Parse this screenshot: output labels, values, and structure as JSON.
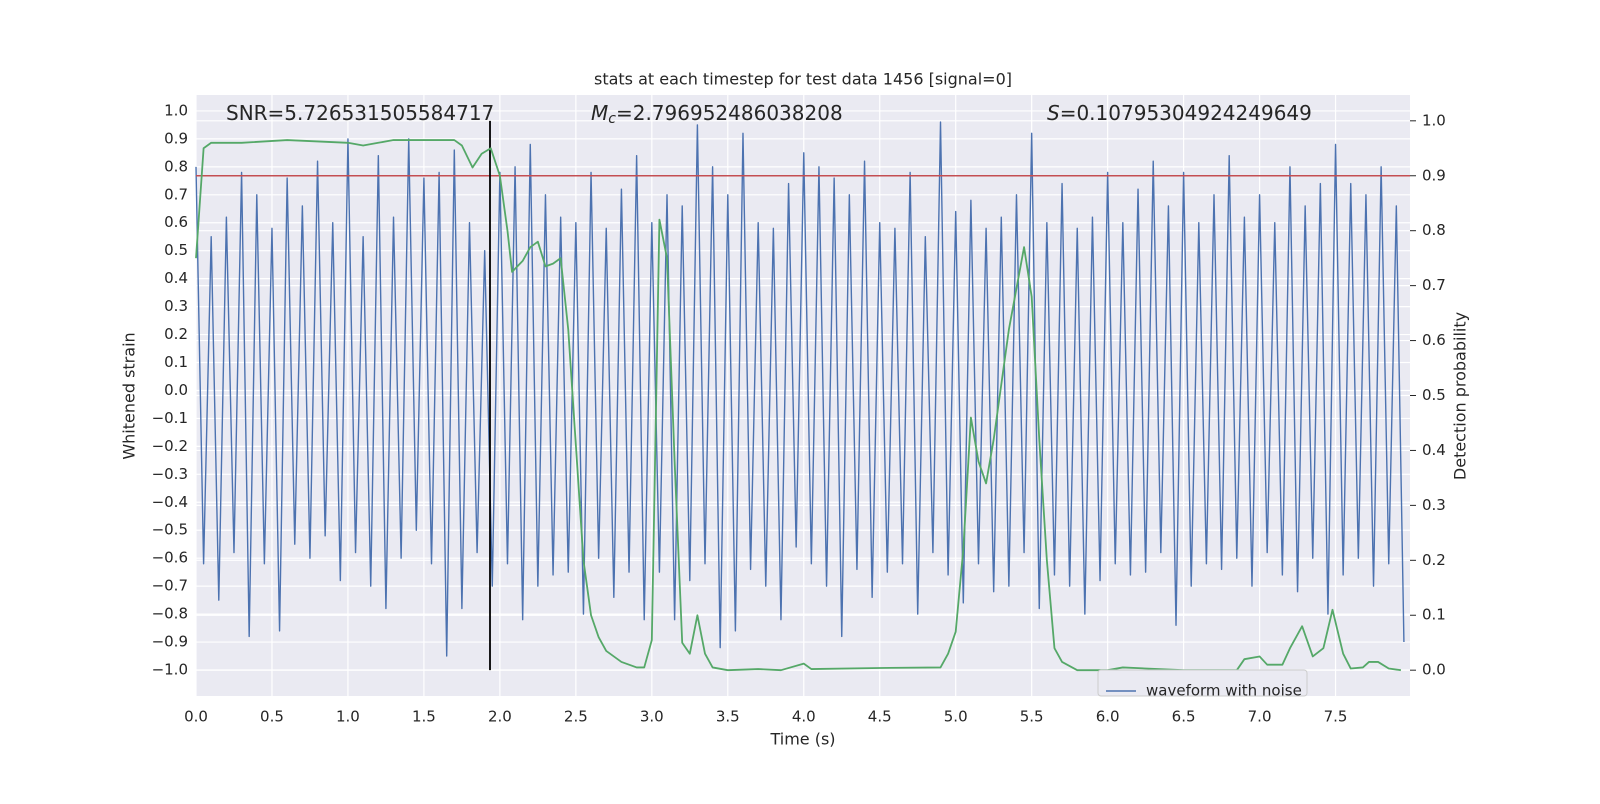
{
  "chart_data": {
    "type": "line",
    "title": "stats at each timestep for test data 1456 [signal=0]",
    "xlabel": "Time (s)",
    "ylabel": "Whitened strain",
    "y2label": "Detection probability",
    "xlim": [
      0,
      7.99
    ],
    "ylim": [
      -1.093,
      1.057
    ],
    "y2lim": [
      -0.047,
      1.047
    ],
    "grid": true,
    "legend": "lower right",
    "xticks": [
      {
        "value": 0,
        "label": "0.0"
      },
      0.5,
      {
        "value": 1,
        "label": "1.0"
      },
      1.5,
      {
        "value": 2,
        "label": "2.0"
      },
      2.5,
      {
        "value": 3,
        "label": "3.0"
      },
      3.5,
      {
        "value": 4,
        "label": "4.0"
      },
      4.5,
      {
        "value": 5,
        "label": "5.0"
      },
      5.5,
      {
        "value": 6,
        "label": "6.0"
      },
      6.5,
      {
        "value": 7,
        "label": "7.0"
      },
      7.5
    ],
    "yticks": [
      {
        "value": 1,
        "label": "1.0"
      },
      0.9,
      0.8,
      0.7,
      0.6,
      0.5,
      0.4,
      0.3,
      0.2,
      0.1,
      {
        "value": 0,
        "label": "0.0"
      },
      {
        "value": -0.1,
        "label": "−0.1"
      },
      {
        "value": -0.2,
        "label": "−0.2"
      },
      {
        "value": -0.3,
        "label": "−0.3"
      },
      {
        "value": -0.4,
        "label": "−0.4"
      },
      {
        "value": -0.5,
        "label": "−0.5"
      },
      {
        "value": -0.6,
        "label": "−0.6"
      },
      {
        "value": -0.7,
        "label": "−0.7"
      },
      {
        "value": -0.8,
        "label": "−0.8"
      },
      {
        "value": -0.9,
        "label": "−0.9"
      },
      {
        "value": -1,
        "label": "−1.0"
      }
    ],
    "y2ticks": [
      {
        "value": 1,
        "label": "1.0"
      },
      0.9,
      0.8,
      0.7,
      0.6,
      0.5,
      0.4,
      0.3,
      0.2,
      0.1,
      {
        "value": 0,
        "label": "0.0"
      }
    ],
    "annotations": [
      {
        "text": "SNR=5.726531505584717"
      },
      {
        "symbol": "M",
        "subscript": "c",
        "text": "=2.796952486038208"
      },
      {
        "symbol": "S",
        "text": "=0.10795304924249649"
      }
    ],
    "hlines": [
      {
        "value": 0.9,
        "axis": "y2",
        "color": "#c44e52"
      }
    ],
    "vlines": [
      {
        "value": 1.935,
        "from": 0,
        "to": 1,
        "axis": "y2",
        "color": "#000000"
      }
    ],
    "series": [
      {
        "name": "waveform with noise",
        "color": "#4c72b0",
        "x": [
          0,
          0.05,
          0.1,
          0.15,
          0.2,
          0.25,
          0.3,
          0.35,
          0.4,
          0.45,
          0.5,
          0.55,
          0.6,
          0.65,
          0.7,
          0.75,
          0.8,
          0.85,
          0.9,
          0.95,
          1,
          1.05,
          1.1,
          1.15,
          1.2,
          1.25,
          1.3,
          1.35,
          1.4,
          1.45,
          1.5,
          1.55,
          1.6,
          1.65,
          1.7,
          1.75,
          1.8,
          1.85,
          1.9,
          1.95,
          2,
          2.05,
          2.1,
          2.15,
          2.2,
          2.25,
          2.3,
          2.35,
          2.4,
          2.45,
          2.5,
          2.55,
          2.6,
          2.65,
          2.7,
          2.75,
          2.8,
          2.85,
          2.9,
          2.95,
          3,
          3.05,
          3.1,
          3.15,
          3.2,
          3.25,
          3.3,
          3.35,
          3.4,
          3.45,
          3.5,
          3.55,
          3.6,
          3.65,
          3.7,
          3.75,
          3.8,
          3.85,
          3.9,
          3.95,
          4,
          4.05,
          4.1,
          4.15,
          4.2,
          4.25,
          4.3,
          4.35,
          4.4,
          4.45,
          4.5,
          4.55,
          4.6,
          4.65,
          4.7,
          4.75,
          4.8,
          4.85,
          4.9,
          4.95,
          5,
          5.05,
          5.1,
          5.15,
          5.2,
          5.25,
          5.3,
          5.35,
          5.4,
          5.45,
          5.5,
          5.55,
          5.6,
          5.65,
          5.7,
          5.75,
          5.8,
          5.85,
          5.9,
          5.95,
          6,
          6.05,
          6.1,
          6.15,
          6.2,
          6.25,
          6.3,
          6.35,
          6.4,
          6.45,
          6.5,
          6.55,
          6.6,
          6.65,
          6.7,
          6.75,
          6.8,
          6.85,
          6.9,
          6.95,
          7,
          7.05,
          7.1,
          7.15,
          7.2,
          7.25,
          7.3,
          7.35,
          7.4,
          7.45,
          7.5,
          7.55,
          7.6,
          7.65,
          7.7,
          7.75,
          7.8,
          7.85,
          7.9,
          7.95
        ],
        "values": [
          0.8,
          -0.62,
          0.55,
          -0.75,
          0.62,
          -0.58,
          0.78,
          -0.88,
          0.7,
          -0.62,
          0.58,
          -0.86,
          0.76,
          -0.55,
          0.66,
          -0.6,
          0.82,
          -0.52,
          0.6,
          -0.68,
          0.9,
          -0.58,
          0.55,
          -0.7,
          0.84,
          -0.78,
          0.62,
          -0.6,
          0.9,
          -0.5,
          0.76,
          -0.62,
          0.78,
          -0.95,
          0.86,
          -0.78,
          0.6,
          -0.58,
          0.5,
          -0.7,
          0.78,
          -0.62,
          0.8,
          -0.82,
          0.88,
          -0.7,
          0.7,
          -0.66,
          0.62,
          -0.65,
          0.6,
          -0.8,
          0.78,
          -0.6,
          0.58,
          -0.74,
          0.72,
          -0.65,
          0.84,
          -0.82,
          0.6,
          -0.65,
          0.7,
          -0.82,
          0.66,
          -0.68,
          0.95,
          -0.62,
          0.8,
          -0.92,
          0.7,
          -0.86,
          0.92,
          -0.64,
          0.6,
          -0.7,
          0.58,
          -0.82,
          0.74,
          -0.56,
          0.85,
          -0.62,
          0.8,
          -0.7,
          0.76,
          -0.88,
          0.7,
          -0.64,
          0.82,
          -0.74,
          0.6,
          -0.65,
          0.58,
          -0.62,
          0.78,
          -0.8,
          0.55,
          -0.58,
          0.96,
          -0.66,
          0.64,
          -0.76,
          0.68,
          -0.62,
          0.58,
          -0.72,
          0.62,
          -0.7,
          0.7,
          -0.58,
          0.92,
          -0.78,
          0.6,
          -0.66,
          0.74,
          -0.7,
          0.58,
          -0.8,
          0.62,
          -0.68,
          0.78,
          -0.62,
          0.6,
          -0.66,
          0.72,
          -0.65,
          0.82,
          -0.58,
          0.66,
          -0.84,
          0.78,
          -0.7,
          0.6,
          -0.62,
          0.7,
          -0.64,
          0.84,
          -0.6,
          0.62,
          -0.7,
          0.7,
          -0.58,
          0.6,
          -0.66,
          0.8,
          -0.72,
          0.66,
          -0.6,
          0.74,
          -0.8,
          0.88,
          -0.66,
          0.74,
          -0.6,
          0.7,
          -0.7,
          0.8,
          -0.62,
          0.66,
          -0.9
        ]
      },
      {
        "color": "#55a868",
        "axis": "y2",
        "x": [
          0,
          0.05,
          0.1,
          0.3,
          0.6,
          1,
          1.1,
          1.2,
          1.3,
          1.7,
          1.75,
          1.82,
          1.88,
          1.94,
          2,
          2.05,
          2.08,
          2.15,
          2.2,
          2.25,
          2.3,
          2.35,
          2.4,
          2.45,
          2.5,
          2.55,
          2.6,
          2.65,
          2.7,
          2.75,
          2.8,
          2.9,
          2.95,
          3,
          3.05,
          3.1,
          3.15,
          3.2,
          3.25,
          3.3,
          3.35,
          3.4,
          3.5,
          3.7,
          3.85,
          4,
          4.05,
          4.5,
          4.9,
          4.95,
          5,
          5.05,
          5.1,
          5.15,
          5.2,
          5.25,
          5.35,
          5.45,
          5.5,
          5.55,
          5.6,
          5.65,
          5.7,
          5.8,
          6,
          6.1,
          6.5,
          6.85,
          6.9,
          7,
          7.05,
          7.15,
          7.2,
          7.28,
          7.35,
          7.42,
          7.48,
          7.55,
          7.6,
          7.68,
          7.72,
          7.78,
          7.85,
          7.93
        ],
        "values": [
          0.75,
          0.95,
          0.96,
          0.96,
          0.965,
          0.96,
          0.955,
          0.96,
          0.965,
          0.965,
          0.955,
          0.915,
          0.94,
          0.95,
          0.9,
          0.8,
          0.725,
          0.745,
          0.77,
          0.78,
          0.735,
          0.74,
          0.75,
          0.62,
          0.41,
          0.2,
          0.1,
          0.06,
          0.035,
          0.025,
          0.015,
          0.005,
          0.005,
          0.055,
          0.82,
          0.75,
          0.38,
          0.05,
          0.03,
          0.1,
          0.03,
          0.005,
          0,
          0.002,
          0,
          0.012,
          0.002,
          0.004,
          0.005,
          0.03,
          0.07,
          0.22,
          0.46,
          0.38,
          0.34,
          0.42,
          0.62,
          0.77,
          0.68,
          0.42,
          0.2,
          0.04,
          0.015,
          0,
          0,
          0.005,
          0,
          0,
          0.02,
          0.025,
          0.01,
          0.01,
          0.04,
          0.08,
          0.025,
          0.04,
          0.11,
          0.03,
          0.003,
          0.005,
          0.015,
          0.015,
          0.003,
          0
        ]
      }
    ]
  }
}
